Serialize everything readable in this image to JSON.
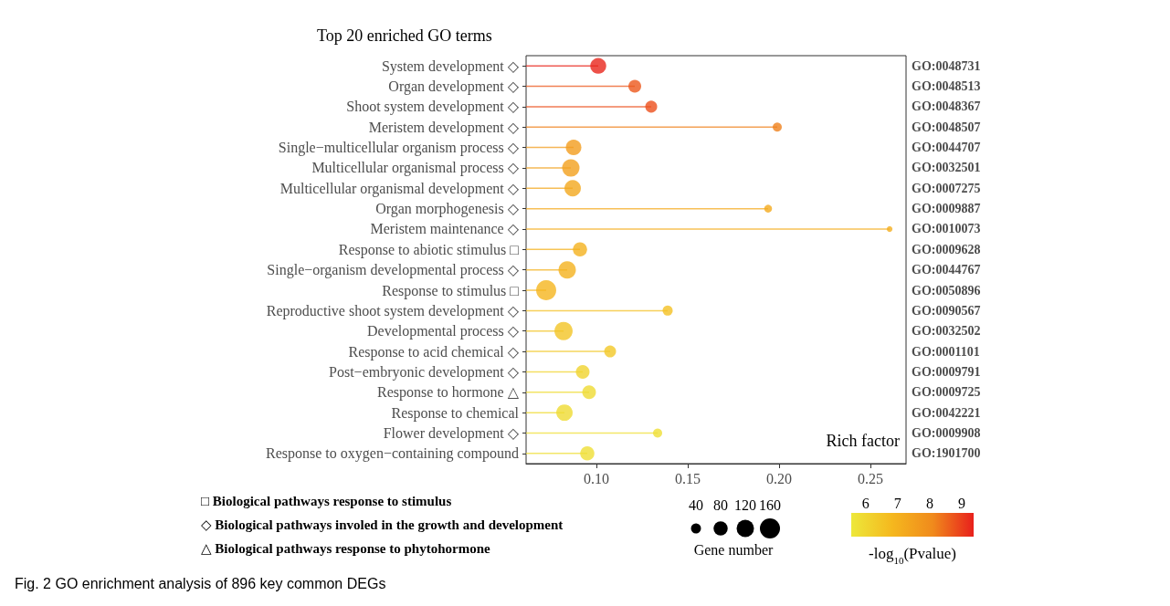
{
  "chart_data": {
    "type": "lollipop",
    "orientation": "horizontal",
    "title": "Top 20 enriched GO terms",
    "xlabel": "Rich factor",
    "categories": [
      "System development ◇",
      "Organ development ◇",
      "Shoot system development ◇",
      "Meristem development ◇",
      "Single−multicellular organism process ◇",
      "Multicellular organismal process ◇",
      "Multicellular organismal development ◇",
      "Organ morphogenesis ◇",
      "Meristem maintenance ◇",
      "Response to abiotic stimulus □",
      "Single−organism developmental process ◇",
      "Response to stimulus □",
      "Reproductive shoot system development ◇",
      "Developmental process ◇",
      "Response to acid chemical ◇",
      "Post−embryonic development ◇",
      "Response to hormone △",
      "Response to chemical",
      "Flower development ◇",
      "Response to oxygen−containing compound"
    ],
    "y2_categories": [
      "GO:0048731",
      "GO:0048513",
      "GO:0048367",
      "GO:0048507",
      "GO:0044707",
      "GO:0032501",
      "GO:0007275",
      "GO:0009887",
      "GO:0010073",
      "GO:0009628",
      "GO:0044767",
      "GO:0050896",
      "GO:0090567",
      "GO:0032502",
      "GO:0001101",
      "GO:0009791",
      "GO:0009725",
      "GO:0042221",
      "GO:0009908",
      "GO:1901700"
    ],
    "values": [
      0.101,
      0.121,
      0.13,
      0.199,
      0.0875,
      0.086,
      0.087,
      0.194,
      0.2605,
      0.091,
      0.084,
      0.0725,
      0.139,
      0.082,
      0.1075,
      0.0925,
      0.096,
      0.0825,
      0.1335,
      0.095
    ],
    "sizes": [
      100,
      65,
      56,
      33,
      96,
      120,
      107,
      24,
      13,
      80,
      120,
      160,
      40,
      132,
      56,
      74,
      74,
      107,
      33,
      80
    ],
    "cvalues": [
      9.3,
      8.7,
      8.8,
      8.2,
      7.6,
      7.5,
      7.3,
      7.2,
      7.1,
      7.0,
      7.0,
      6.9,
      6.6,
      6.5,
      6.4,
      6.1,
      5.9,
      5.9,
      5.8,
      5.8
    ],
    "size_legend": [
      40,
      80,
      120,
      160
    ],
    "legend_title": "Gene number",
    "clim": [
      5.55,
      9.37
    ],
    "cticks": [
      6,
      7,
      8,
      9
    ],
    "clabel": "-log$_{10}$(Pvalue)",
    "xlim": [
      0.0615,
      0.2695
    ],
    "xticks": [
      {
        "value": 0.1,
        "label": "0.10"
      },
      {
        "value": 0.15,
        "label": "0.15"
      },
      {
        "value": 0.2,
        "label": "0.20"
      },
      {
        "value": 0.25,
        "label": "0.25"
      }
    ],
    "grid": false,
    "annotations": [
      "□ Biological pathways response to stimulus",
      "◇ Biological pathways involed in the growth and development",
      "△ Biological pathways response to phytohormone",
      "Fig. 2 GO enrichment analysis of 896 key common DEGs"
    ]
  }
}
